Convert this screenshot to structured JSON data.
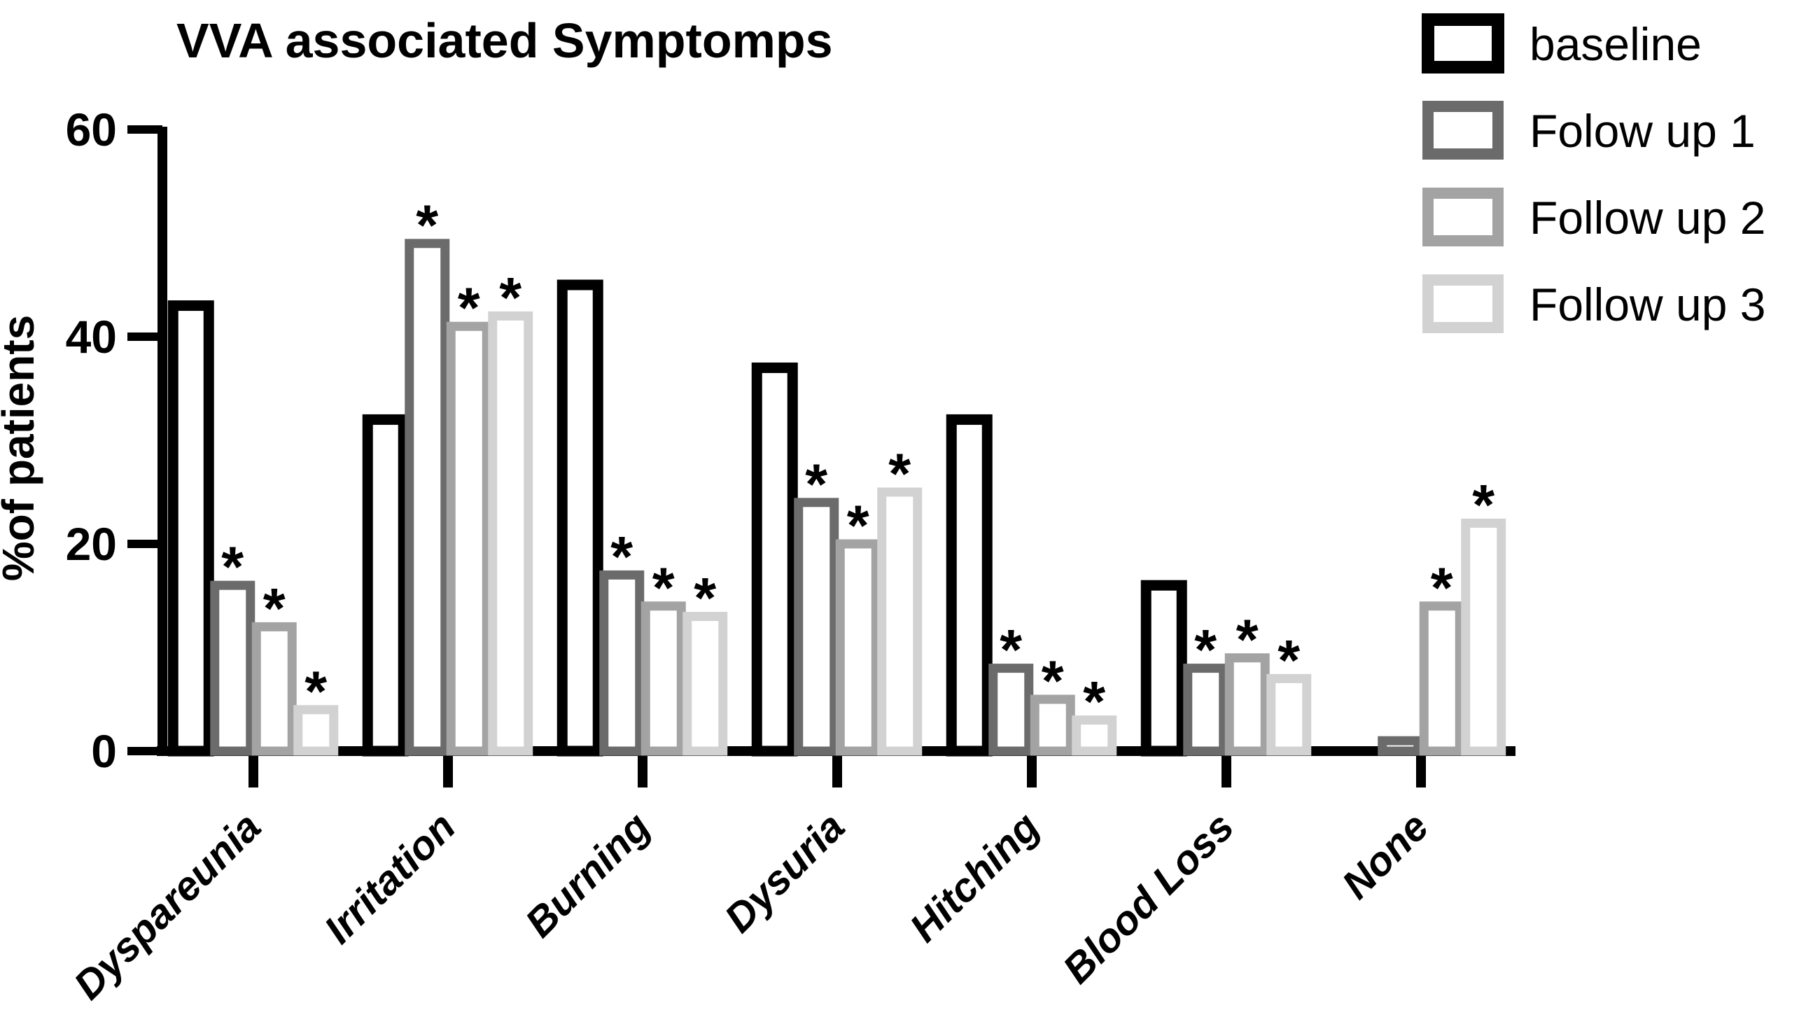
{
  "chart_data": {
    "type": "bar",
    "title": "VVA associated Symptomps",
    "ylabel": "%of patients",
    "xlabel": "",
    "ylim": [
      0,
      60
    ],
    "yticks": [
      0,
      20,
      40,
      60
    ],
    "grid": false,
    "legend_position": "top-right",
    "bar_style": "outlined-white-fill",
    "significance_marker": "*",
    "categories": [
      "Dyspareunia",
      "Irritation",
      "Burning",
      "Dysuria",
      "Hitching",
      "Blood Loss",
      "None"
    ],
    "series": [
      {
        "name": "baseline",
        "color": "#000000",
        "values": [
          43,
          32,
          45,
          37,
          32,
          16,
          0
        ],
        "significant": [
          false,
          false,
          false,
          false,
          false,
          false,
          false
        ]
      },
      {
        "name": "Folow up 1",
        "color": "#6b6b6b",
        "values": [
          16,
          49,
          17,
          24,
          8,
          8,
          1
        ],
        "significant": [
          true,
          true,
          true,
          true,
          true,
          true,
          false
        ]
      },
      {
        "name": "Follow up 2",
        "color": "#a3a3a3",
        "values": [
          12,
          41,
          14,
          20,
          5,
          9,
          14
        ],
        "significant": [
          true,
          true,
          true,
          true,
          true,
          true,
          true
        ]
      },
      {
        "name": "Follow up 3",
        "color": "#d2d2d2",
        "values": [
          4,
          42,
          13,
          25,
          3,
          7,
          22
        ],
        "significant": [
          true,
          true,
          true,
          true,
          true,
          true,
          true
        ]
      }
    ]
  }
}
